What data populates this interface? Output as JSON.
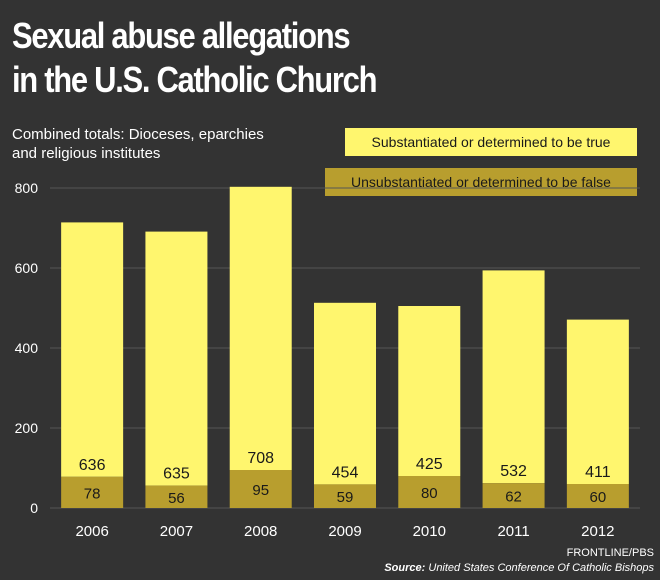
{
  "header": {
    "title_line1": "Sexual abuse allegations",
    "title_line2": "in the U.S. Catholic Church",
    "subtitle_line1": "Combined totals: Dioceses, eparchies",
    "subtitle_line2": "and religious institutes"
  },
  "colors": {
    "background": "#333333",
    "substantiated": "#FFF66E",
    "unsubstantiated": "#B89E2E",
    "gridline": "#555555",
    "text": "#ffffff",
    "label_text": "#1a1a1a"
  },
  "chart_data": {
    "type": "bar",
    "stacked": true,
    "categories": [
      "2006",
      "2007",
      "2008",
      "2009",
      "2010",
      "2011",
      "2012"
    ],
    "series": [
      {
        "name": "Unsubstantiated or determined to be false",
        "values": [
          78,
          56,
          95,
          59,
          80,
          62,
          60
        ]
      },
      {
        "name": "Substantiated or determined to be true",
        "values": [
          636,
          635,
          708,
          454,
          425,
          532,
          411
        ]
      }
    ],
    "title": "Sexual abuse allegations in the U.S. Catholic Church",
    "subtitle": "Combined totals: Dioceses, eparchies and religious institutes",
    "xlabel": "",
    "ylabel": "",
    "ylim": [
      0,
      800
    ],
    "yticks": [
      0,
      200,
      400,
      600,
      800
    ],
    "grid": true,
    "legend": "top-right"
  },
  "footer": {
    "credit": "FRONTLINE/PBS",
    "source_label": "Source:",
    "source_text": "United States Conference Of Catholic Bishops"
  }
}
